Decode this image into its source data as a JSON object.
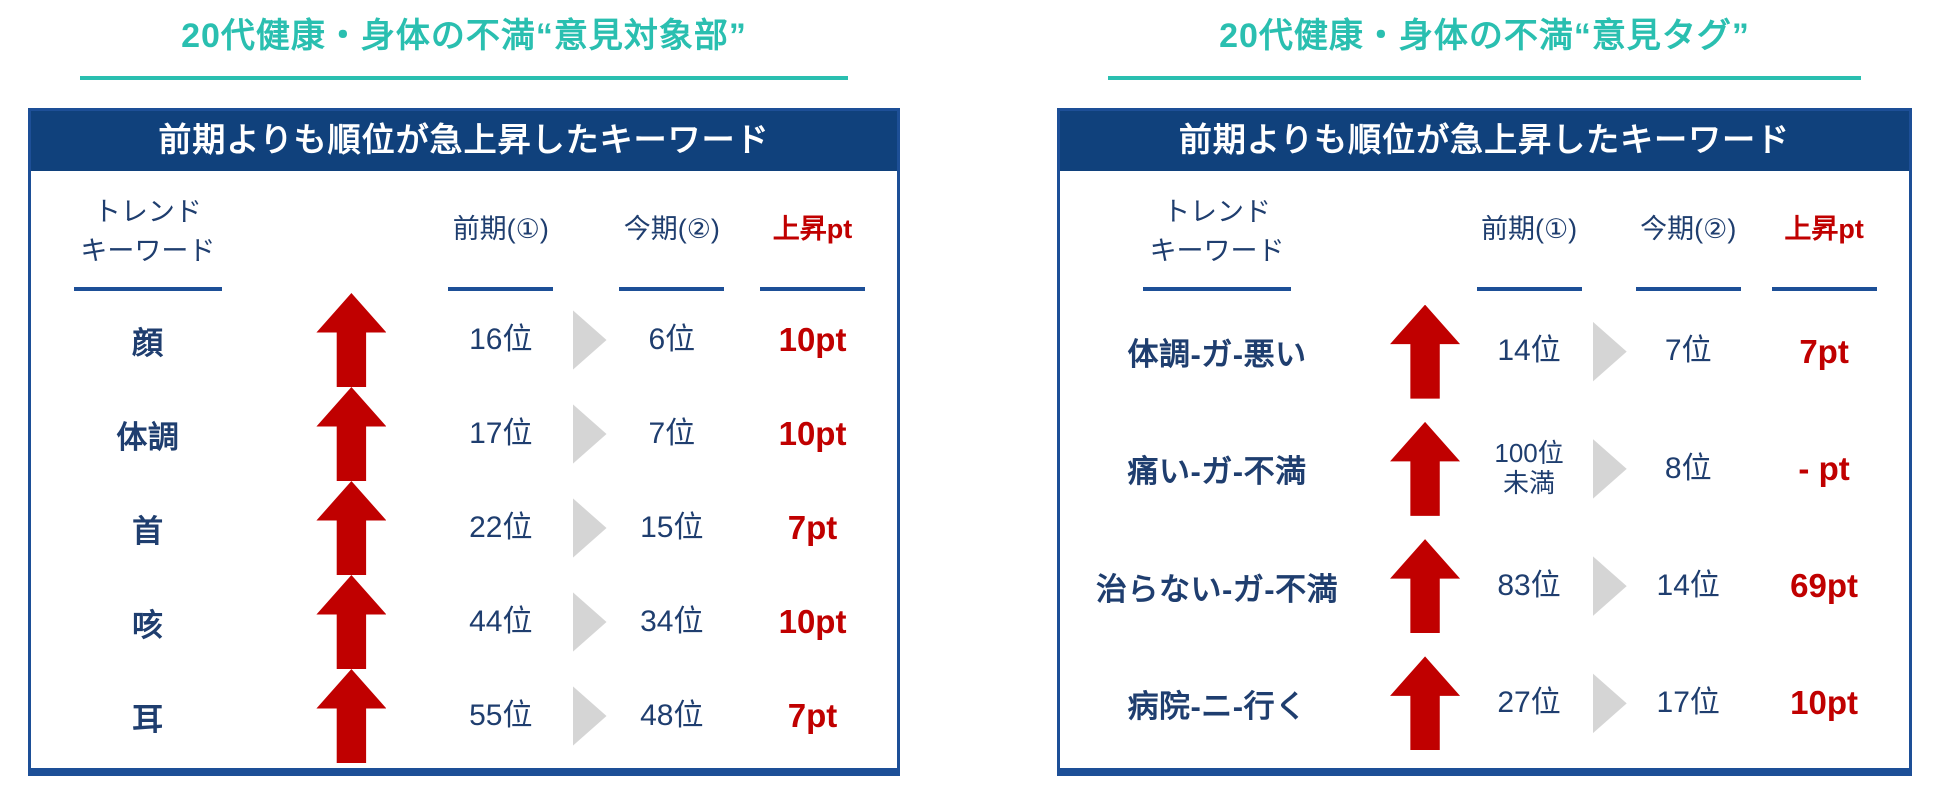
{
  "colors": {
    "title_teal": "#2ABFB0",
    "banner_navy": "#10417C",
    "border_blue": "#1D4F97",
    "text_navy": "#1F3E6F",
    "accent_red": "#C00000",
    "chevron_gray": "#D5D5D5"
  },
  "icons": {
    "rise_arrow": "up-block-arrow",
    "rank_transition": "right-chevron"
  },
  "left_panel": {
    "title": "20代健康・身体の不満“意見対象部”",
    "banner": "前期よりも順位が急上昇したキーワード",
    "columns": {
      "keyword": "トレンド\nキーワード",
      "prev": "前期(①)",
      "now": "今期(②)",
      "pt": "上昇pt"
    },
    "rows": [
      {
        "keyword": "顔",
        "prev": "16位",
        "now": "6位",
        "pt": "10pt"
      },
      {
        "keyword": "体調",
        "prev": "17位",
        "now": "7位",
        "pt": "10pt"
      },
      {
        "keyword": "首",
        "prev": "22位",
        "now": "15位",
        "pt": "7pt"
      },
      {
        "keyword": "咳",
        "prev": "44位",
        "now": "34位",
        "pt": "10pt"
      },
      {
        "keyword": "耳",
        "prev": "55位",
        "now": "48位",
        "pt": "7pt"
      }
    ]
  },
  "right_panel": {
    "title": "20代健康・身体の不満“意見タグ”",
    "banner": "前期よりも順位が急上昇したキーワード",
    "columns": {
      "keyword": "トレンド\nキーワード",
      "prev": "前期(①)",
      "now": "今期(②)",
      "pt": "上昇pt"
    },
    "rows": [
      {
        "keyword": "体調-ガ-悪い",
        "prev": "14位",
        "now": "7位",
        "pt": "7pt"
      },
      {
        "keyword": "痛い-ガ-不満",
        "prev": "100位\n未満",
        "now": "8位",
        "pt": "- pt"
      },
      {
        "keyword": "治らない-ガ-不満",
        "prev": "83位",
        "now": "14位",
        "pt": "69pt"
      },
      {
        "keyword": "病院-ニ-行く",
        "prev": "27位",
        "now": "17位",
        "pt": "10pt"
      }
    ]
  }
}
